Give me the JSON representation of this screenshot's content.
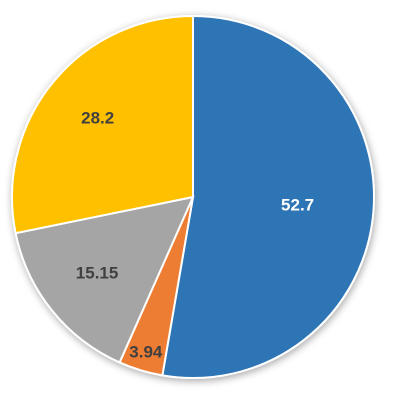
{
  "chart_data": {
    "type": "pie",
    "values": [
      52.7,
      3.94,
      15.15,
      28.2
    ],
    "colors": [
      "#2e75b6",
      "#ed7d31",
      "#a5a5a5",
      "#ffc000"
    ],
    "start_angle": 0,
    "direction": "clockwise"
  }
}
